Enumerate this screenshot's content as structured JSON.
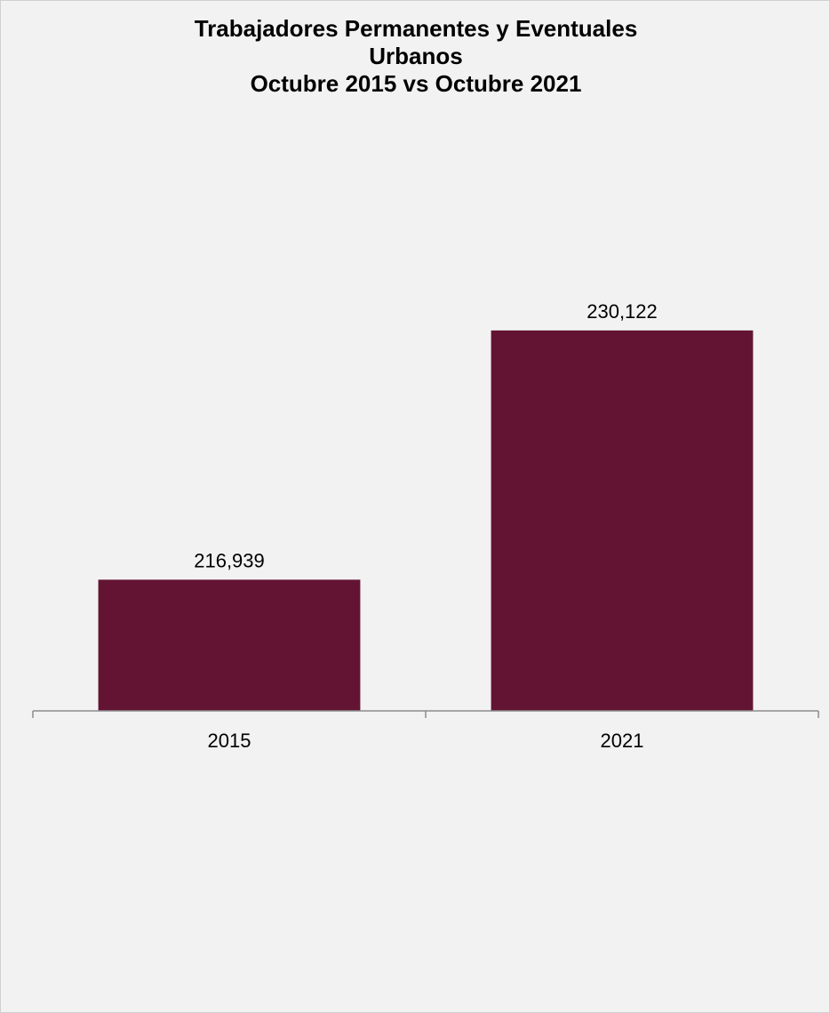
{
  "chart_data": {
    "type": "bar",
    "title_lines": [
      "Trabajadores Permanentes y Eventuales",
      "Urbanos",
      "Octubre 2015 vs Octubre 2021"
    ],
    "categories": [
      "2015",
      "2021"
    ],
    "values": [
      216939,
      230122
    ],
    "value_labels": [
      "216,939",
      "230,122"
    ],
    "xlabel": "",
    "ylabel": "",
    "ylim": [
      210000,
      233500
    ],
    "grid": false,
    "legend": "none",
    "bar_color": "#631432"
  }
}
